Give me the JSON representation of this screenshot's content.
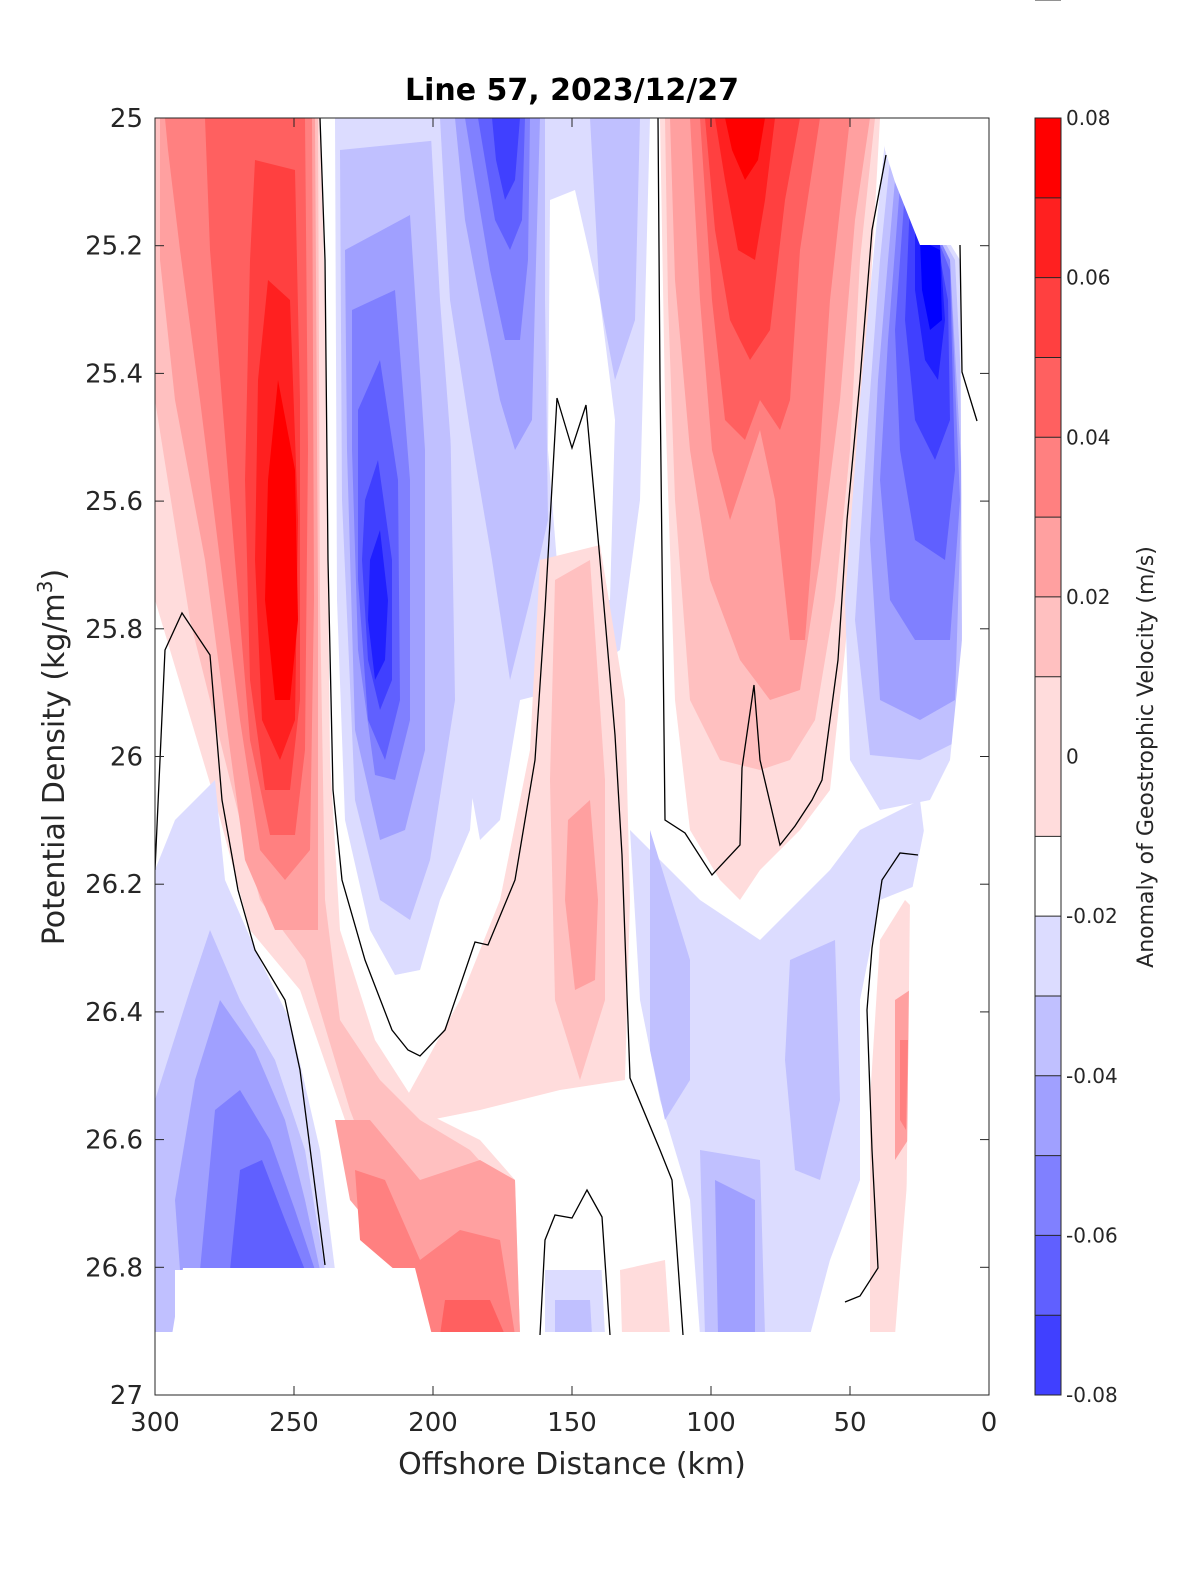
{
  "chart_data": {
    "type": "heatmap",
    "subtype": "filled-contour",
    "title": "Line 57, 2023/12/27",
    "xlabel": "Offshore Distance (km)",
    "ylabel_main": "Potential Density (kg/m",
    "ylabel_sup": "3",
    "ylabel_close": ")",
    "colorbar_label": "Anomaly of Geostrophic Velocity (m/s)",
    "xlim": [
      300,
      0
    ],
    "x_reversed": true,
    "ylim": [
      25,
      27
    ],
    "y_reversed": true,
    "x_ticks": [
      300,
      250,
      200,
      150,
      100,
      50,
      0
    ],
    "x_tick_labels": [
      "300",
      "250",
      "200",
      "150",
      "100",
      "50",
      "0"
    ],
    "y_ticks": [
      25,
      25.2,
      25.4,
      25.6,
      25.8,
      26,
      26.2,
      26.4,
      26.6,
      26.8,
      27
    ],
    "y_tick_labels": [
      "25",
      "25.2",
      "25.4",
      "25.6",
      "25.8",
      "26",
      "26.2",
      "26.4",
      "26.6",
      "26.8",
      "27"
    ],
    "colorbar": {
      "range": [
        -0.08,
        0.08
      ],
      "ticks": [
        0.08,
        0.06,
        0.04,
        0.02,
        0,
        -0.02,
        -0.04,
        -0.06,
        -0.08
      ],
      "tick_labels": [
        "0.08",
        "0.06",
        "0.04",
        "0.02",
        "0",
        "-0.02",
        "-0.04",
        "-0.06",
        "-0.08"
      ],
      "levels": [
        -0.08,
        -0.07,
        -0.06,
        -0.05,
        -0.04,
        -0.03,
        -0.02,
        -0.01,
        0.01,
        0.02,
        0.03,
        0.04,
        0.05,
        0.06,
        0.07,
        0.08
      ],
      "colors_top_to_bottom": [
        "#ff0000",
        "#ff2020",
        "#ff4040",
        "#ff6060",
        "#ff8080",
        "#ffa0a0",
        "#ffc0c0",
        "#ffdcdc",
        "#ffffff",
        "#dcdcff",
        "#c0c0ff",
        "#a0a0ff",
        "#8080ff",
        "#6060ff",
        "#4040ff",
        "#2020ff",
        "#0000ff"
      ]
    },
    "zero_contour_color": "#000000",
    "field_features": [
      {
        "label": "positive core",
        "x": 255,
        "y": 25.7,
        "value": 0.08
      },
      {
        "label": "negative core",
        "x": 220,
        "y": 25.7,
        "value": -0.07
      },
      {
        "label": "negative core",
        "x": 172,
        "y": 25.05,
        "value": -0.06
      },
      {
        "label": "positive core",
        "x": 88,
        "y": 25.1,
        "value": 0.07
      },
      {
        "label": "negative core",
        "x": 22,
        "y": 25.35,
        "value": -0.08
      },
      {
        "label": "negative core",
        "x": 260,
        "y": 26.75,
        "value": -0.05
      },
      {
        "label": "positive patch",
        "x": 180,
        "y": 26.85,
        "value": 0.04
      },
      {
        "label": "positive patch",
        "x": 145,
        "y": 26.1,
        "value": 0.03
      }
    ]
  }
}
